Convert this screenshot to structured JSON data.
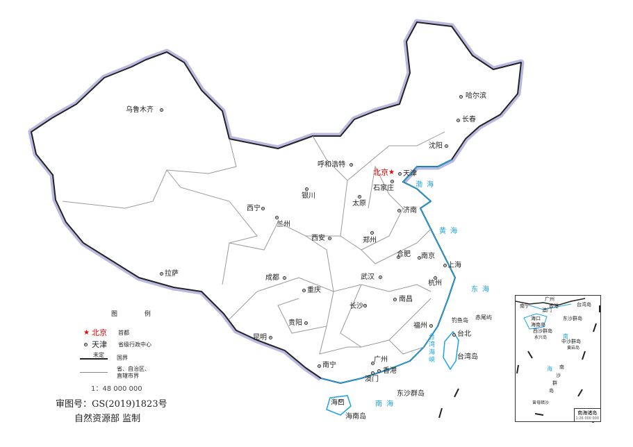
{
  "map": {
    "capital": {
      "name": "北京",
      "icon": "red-star-icon",
      "color": "#e00000"
    },
    "cities": [
      "乌鲁木齐",
      "哈尔滨",
      "长春",
      "沈阳",
      "呼和浩特",
      "天津",
      "石家庄",
      "太原",
      "济南",
      "银川",
      "西宁",
      "兰州",
      "西安",
      "郑州",
      "合肥",
      "南京",
      "上海",
      "武汉",
      "杭州",
      "成都",
      "重庆",
      "拉萨",
      "长沙",
      "南昌",
      "福州",
      "台北",
      "贵阳",
      "昆明",
      "南宁",
      "广州",
      "香港",
      "澳门",
      "海口"
    ],
    "seas": [
      "渤海",
      "黄海",
      "东海",
      "南海",
      "台湾海峡"
    ],
    "islands": [
      "钓鱼岛",
      "赤尾屿",
      "台湾岛",
      "东沙群岛",
      "海南岛"
    ],
    "colors": {
      "coastline": "#1aa3e6",
      "border": "#222222",
      "border_halo": "#b9b8e0",
      "province_border": "#999999"
    }
  },
  "legend": {
    "title": "图 例",
    "capital_example": "北京",
    "capital_desc": "首都",
    "province_center_example": "天津",
    "province_center_desc": "省级行政中心",
    "undetermined_label": "未定",
    "national_border_desc": "国界",
    "province_border_desc_1": "省、自治区、",
    "province_border_desc_2": "直辖市界",
    "scale": "1：48 000 000"
  },
  "credits": {
    "approval_no": "审图号：GS(2019)1823号",
    "publisher": "自然资源部 监制"
  },
  "inset": {
    "title": "南海诸岛",
    "scale": "1:26 000 000",
    "labels": [
      "南宁",
      "广州",
      "香港",
      "澳门",
      "台湾岛",
      "海口",
      "海南岛",
      "东沙群岛",
      "西沙群岛",
      "永兴岛",
      "中沙群岛",
      "黄岩岛",
      "曾母暗沙"
    ],
    "sea_chars": [
      "南",
      "海"
    ],
    "nansha_chars": [
      "南",
      "沙",
      "群",
      "岛"
    ]
  }
}
